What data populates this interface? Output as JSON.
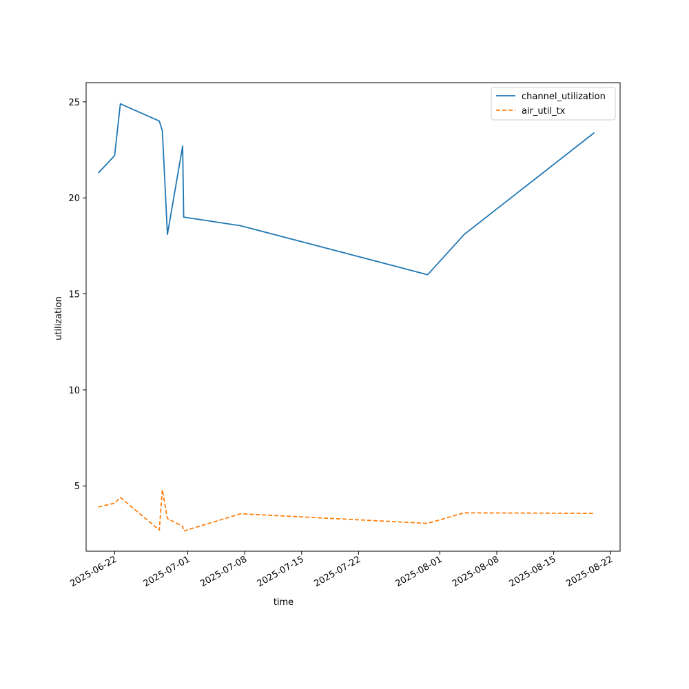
{
  "chart_data": {
    "type": "line",
    "title": "",
    "xlabel": "time",
    "ylabel": "utilization",
    "x_axis_type": "date",
    "xlim": [
      "2025-06-18T12:00",
      "2025-08-23T04:00"
    ],
    "ylim": [
      1.6,
      26.0
    ],
    "x_ticks": [
      "2025-06-22",
      "2025-07-01",
      "2025-07-08",
      "2025-07-15",
      "2025-07-22",
      "2025-08-01",
      "2025-08-08",
      "2025-08-15",
      "2025-08-22"
    ],
    "y_ticks": [
      5,
      10,
      15,
      20,
      25
    ],
    "grid": false,
    "legend_position": "top-right",
    "series": [
      {
        "name": "channel_utilization",
        "color": "#1f77b4",
        "style": "solid",
        "x": [
          "2025-06-20T00:00",
          "2025-06-22T00:00",
          "2025-06-22T17:00",
          "2025-06-27T12:00",
          "2025-06-27T21:00",
          "2025-06-28T12:00",
          "2025-06-30T09:00",
          "2025-06-30T12:00",
          "2025-07-07T12:00",
          "2025-07-30T12:00",
          "2025-08-04T00:00",
          "2025-08-20T00:00"
        ],
        "values": [
          21.3,
          22.2,
          24.9,
          24.0,
          23.5,
          18.1,
          22.7,
          19.0,
          18.55,
          16.0,
          18.1,
          23.4
        ]
      },
      {
        "name": "air_util_tx",
        "color": "#ff7f0e",
        "style": "dashed",
        "x": [
          "2025-06-20T00:00",
          "2025-06-22T00:00",
          "2025-06-22T17:00",
          "2025-06-27T12:00",
          "2025-06-27T21:00",
          "2025-06-28T12:00",
          "2025-06-30T09:00",
          "2025-06-30T12:00",
          "2025-07-07T12:00",
          "2025-07-30T12:00",
          "2025-08-04T00:00",
          "2025-08-20T00:00"
        ],
        "values": [
          3.9,
          4.1,
          4.4,
          2.7,
          4.8,
          3.3,
          2.9,
          2.65,
          3.55,
          3.05,
          3.6,
          3.57
        ]
      }
    ]
  }
}
